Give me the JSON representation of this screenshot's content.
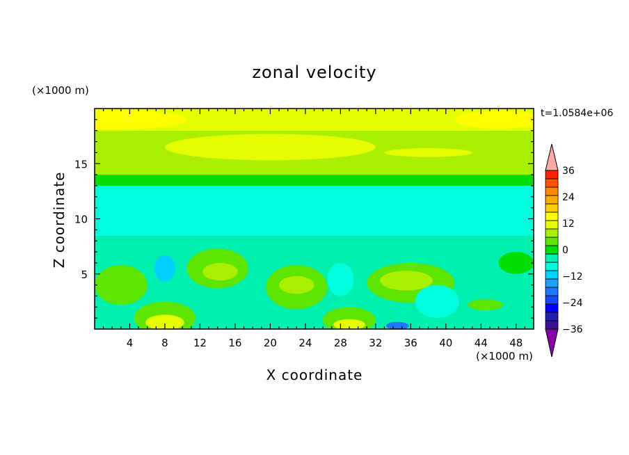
{
  "chart_data": {
    "type": "heatmap",
    "title": "zonal velocity",
    "xlabel": "X coordinate",
    "ylabel": "Z coordinate",
    "x_unit": "(×1000 m)",
    "y_unit": "(×1000 m)",
    "time_label": "t=1.0584e+06",
    "xlim": [
      0,
      50
    ],
    "ylim": [
      0,
      20
    ],
    "x_ticks": [
      4,
      8,
      12,
      16,
      20,
      24,
      28,
      32,
      36,
      40,
      44,
      48
    ],
    "x_tick_labels": [
      "4",
      "8",
      "12",
      "16",
      "20",
      "24",
      "28",
      "32",
      "36",
      "40",
      "44",
      "48"
    ],
    "y_ticks": [
      5,
      10,
      15
    ],
    "y_tick_labels": [
      "5",
      "10",
      "15"
    ],
    "colorbar": {
      "levels": [
        -40,
        -36,
        -32,
        -28,
        -24,
        -20,
        -16,
        -12,
        -8,
        -4,
        0,
        4,
        8,
        12,
        16,
        20,
        24,
        28,
        32,
        36,
        40
      ],
      "colors": [
        "#8a00a8",
        "#3a0f96",
        "#2020b0",
        "#0000ff",
        "#1848ff",
        "#1e78ff",
        "#1ea0ff",
        "#00d0ff",
        "#00ffdd",
        "#00f0b0",
        "#00dd00",
        "#5ee500",
        "#aaee00",
        "#e6ff00",
        "#ffff00",
        "#ffcc00",
        "#ffaa00",
        "#ff8800",
        "#ff5500",
        "#ff2200",
        "#ffaaaa"
      ],
      "tick_values": [
        36,
        24,
        12,
        0,
        -12,
        -24,
        -36
      ],
      "tick_labels": [
        "36",
        "24",
        "12",
        "0",
        "−12",
        "−24",
        "−36"
      ],
      "extend": "both"
    },
    "field_description_levels": "contour bands of zonal velocity estimated from image",
    "bands": [
      {
        "x_range": [
          0,
          50
        ],
        "z_range": [
          18.0,
          20.0
        ],
        "value": 14
      },
      {
        "x_range": [
          0,
          50
        ],
        "z_range": [
          14.0,
          18.0
        ],
        "value": 10
      },
      {
        "x_range": [
          0,
          50
        ],
        "z_range": [
          13.0,
          14.0
        ],
        "value": 2
      },
      {
        "x_range": [
          0,
          50
        ],
        "z_range": [
          8.5,
          13.0
        ],
        "value": -6
      },
      {
        "x_range": [
          0,
          50
        ],
        "z_range": [
          0,
          8.5
        ],
        "value": -2
      }
    ],
    "features": [
      {
        "x": 1.5,
        "z": 19.0,
        "rx": 9,
        "rz": 0.9,
        "value": 18
      },
      {
        "x": 46,
        "z": 19.0,
        "rx": 5,
        "rz": 0.8,
        "value": 18
      },
      {
        "x": 20,
        "z": 16.5,
        "rx": 12,
        "rz": 1.2,
        "value": 14
      },
      {
        "x": 38,
        "z": 16.0,
        "rx": 5,
        "rz": 0.4,
        "value": 14
      },
      {
        "x": 14,
        "z": 5.5,
        "rx": 3.5,
        "rz": 1.8,
        "value": 6
      },
      {
        "x": 14.3,
        "z": 5.2,
        "rx": 2,
        "rz": 0.8,
        "value": 10
      },
      {
        "x": 23,
        "z": 3.8,
        "rx": 3.5,
        "rz": 2.0,
        "value": 6
      },
      {
        "x": 23,
        "z": 4.0,
        "rx": 2,
        "rz": 0.8,
        "value": 10
      },
      {
        "x": 36,
        "z": 4.2,
        "rx": 5,
        "rz": 1.8,
        "value": 6
      },
      {
        "x": 35.5,
        "z": 4.4,
        "rx": 3,
        "rz": 0.9,
        "value": 10
      },
      {
        "x": 8,
        "z": 1.0,
        "rx": 3.5,
        "rz": 1.5,
        "value": 6
      },
      {
        "x": 8,
        "z": 0.6,
        "rx": 2.2,
        "rz": 0.7,
        "value": 14
      },
      {
        "x": 29,
        "z": 0.8,
        "rx": 3,
        "rz": 1.2,
        "value": 6
      },
      {
        "x": 29,
        "z": 0.4,
        "rx": 1.8,
        "rz": 0.5,
        "value": 14
      },
      {
        "x": 3,
        "z": 4.0,
        "rx": 3,
        "rz": 1.8,
        "value": 6
      },
      {
        "x": 44.5,
        "z": 2.2,
        "rx": 2,
        "rz": 0.5,
        "value": 6
      },
      {
        "x": 48,
        "z": 6.0,
        "rx": 2,
        "rz": 1.0,
        "value": 2
      },
      {
        "x": 8,
        "z": 5.5,
        "rx": 1.2,
        "rz": 1.2,
        "value": -10
      },
      {
        "x": 28,
        "z": 4.5,
        "rx": 1.5,
        "rz": 1.5,
        "value": -8
      },
      {
        "x": 34.5,
        "z": 0.3,
        "rx": 1.3,
        "rz": 0.35,
        "value": -18
      },
      {
        "x": 39,
        "z": 2.5,
        "rx": 2.5,
        "rz": 1.5,
        "value": -6
      }
    ]
  }
}
